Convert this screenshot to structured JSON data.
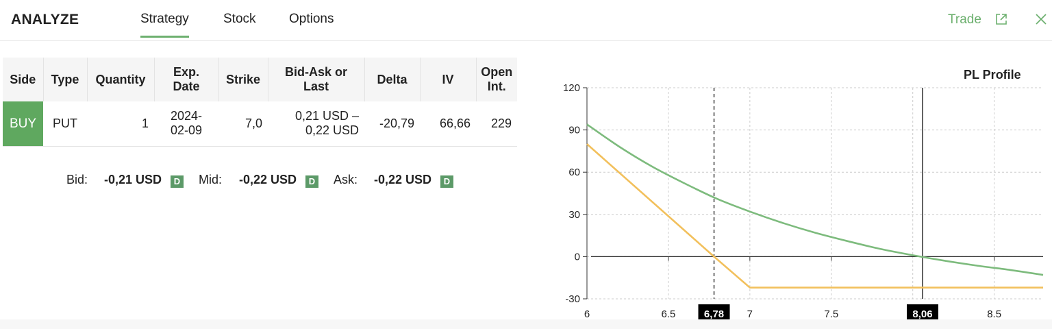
{
  "header": {
    "title": "ANALYZE",
    "tabs": [
      {
        "label": "Strategy",
        "active": true
      },
      {
        "label": "Stock",
        "active": false
      },
      {
        "label": "Options",
        "active": false
      }
    ],
    "trade_label": "Trade",
    "accent_color": "#6db06f"
  },
  "table": {
    "columns": [
      "Side",
      "Type",
      "Quantity",
      "Exp. Date",
      "Strike",
      "Bid-Ask or Last",
      "Delta",
      "IV",
      "Open Int."
    ],
    "column_lines": [
      [
        "Side"
      ],
      [
        "Type"
      ],
      [
        "Quantity"
      ],
      [
        "Exp.",
        "Date"
      ],
      [
        "Strike"
      ],
      [
        "Bid-Ask or",
        "Last"
      ],
      [
        "Delta"
      ],
      [
        "IV"
      ],
      [
        "Open",
        "Int."
      ]
    ],
    "rows": [
      {
        "side": "BUY",
        "type": "PUT",
        "quantity": "1",
        "exp_date_1": "2024-",
        "exp_date_2": "02-09",
        "strike": "7,0",
        "bid_ask_1": "0,21 USD –",
        "bid_ask_2": "0,22 USD",
        "delta": "-20,79",
        "iv": "66,66",
        "open_int": "229"
      }
    ],
    "buy_color": "#5fa85f"
  },
  "quotes": {
    "bid_label": "Bid:",
    "bid_value": "-0,21 USD",
    "mid_label": "Mid:",
    "mid_value": "-0,22 USD",
    "ask_label": "Ask:",
    "ask_value": "-0,22 USD",
    "badge": "D"
  },
  "chart_data": {
    "type": "line",
    "title": "PL Profile",
    "xlim": [
      6,
      8.8
    ],
    "ylim": [
      -30,
      120
    ],
    "x_ticks": [
      6,
      6.5,
      7,
      7.5,
      8.5
    ],
    "x_tick_labels": [
      "6",
      "6.5",
      "7",
      "7.5",
      "8.5"
    ],
    "y_ticks": [
      120,
      90,
      60,
      30,
      0,
      -30
    ],
    "markers": [
      {
        "x": 6.78,
        "label": "6,78",
        "style": "dashed"
      },
      {
        "x": 8.06,
        "label": "8,06",
        "style": "solid"
      }
    ],
    "grid": true,
    "series": [
      {
        "color": "#7dbb7d",
        "x": [
          6.0,
          6.2,
          6.4,
          6.6,
          6.8,
          7.0,
          7.2,
          7.4,
          7.6,
          7.8,
          8.0,
          8.2,
          8.4,
          8.6,
          8.8
        ],
        "y": [
          94,
          78,
          64,
          52,
          41,
          32,
          24,
          17,
          11,
          5.5,
          1,
          -3,
          -6.5,
          -9.5,
          -13
        ]
      },
      {
        "color": "#f2c05c",
        "x": [
          6.0,
          6.78,
          7.0,
          8.8
        ],
        "y": [
          80,
          0,
          -22,
          -22
        ]
      }
    ]
  }
}
